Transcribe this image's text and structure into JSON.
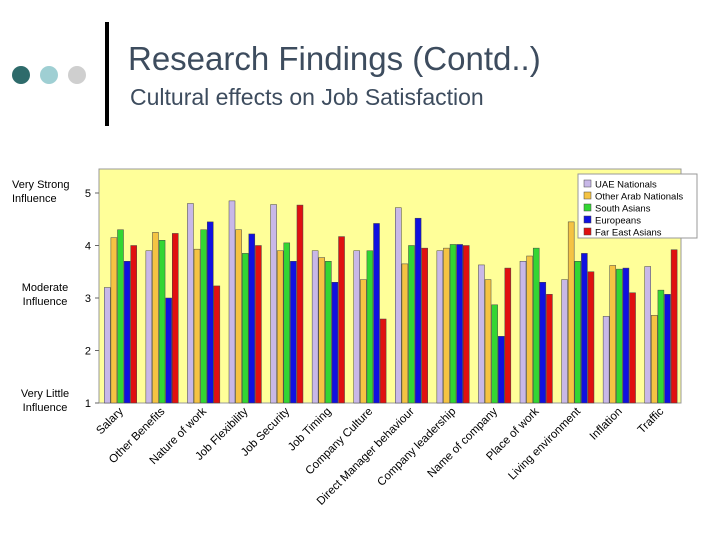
{
  "slide": {
    "title": "Research Findings (Contd..)",
    "subtitle": "Cultural effects on Job Satisfaction",
    "dot_colors": [
      "#2e6b6b",
      "#9fcfd3",
      "#cfcfcf"
    ]
  },
  "influence_labels": {
    "very_strong_line1": "Very Strong",
    "very_strong_line2": "Influence",
    "moderate_line1": "Moderate",
    "moderate_line2": "Influence",
    "very_little_line1": "Very Little",
    "very_little_line2": "Influence"
  },
  "chart_data": {
    "type": "bar",
    "title": "",
    "xlabel": "",
    "ylabel": "",
    "ylim": [
      1,
      5
    ],
    "yticks": [
      1,
      2,
      3,
      4,
      5
    ],
    "grid": false,
    "legend_position": "top-right",
    "plot_background": "#ffff99",
    "categories": [
      "Salary",
      "Other Benefits",
      "Nature of work",
      "Job Flexibility",
      "Job Security",
      "Job Timing",
      "Company Culture",
      "Direct Manager behaviour",
      "Company leadership",
      "Name of company",
      "Place of work",
      "Living environment",
      "Inflation",
      "Traffic"
    ],
    "series": [
      {
        "name": "UAE Nationals",
        "color": "#c8b8e8",
        "values": [
          3.2,
          3.9,
          4.8,
          4.85,
          4.78,
          3.9,
          3.9,
          4.72,
          3.9,
          3.63,
          3.7,
          3.35,
          2.65,
          3.6
        ]
      },
      {
        "name": "Other Arab Nationals",
        "color": "#f5c343",
        "values": [
          4.15,
          4.25,
          3.93,
          4.3,
          3.9,
          3.77,
          3.35,
          3.65,
          3.95,
          3.35,
          3.8,
          4.45,
          3.62,
          2.67
        ]
      },
      {
        "name": "South Asians",
        "color": "#33d633",
        "values": [
          4.3,
          4.1,
          4.3,
          3.85,
          4.05,
          3.7,
          3.9,
          4.0,
          4.02,
          2.87,
          3.95,
          3.7,
          3.55,
          3.15
        ]
      },
      {
        "name": "Europeans",
        "color": "#1010e0",
        "values": [
          3.7,
          3.0,
          4.45,
          4.22,
          3.7,
          3.3,
          4.42,
          4.52,
          4.02,
          2.27,
          3.3,
          3.85,
          3.57,
          3.07
        ]
      },
      {
        "name": "Far East Asians",
        "color": "#e01010",
        "values": [
          4.0,
          4.23,
          3.23,
          4.0,
          4.77,
          4.17,
          2.6,
          3.95,
          4.0,
          3.57,
          3.07,
          3.5,
          3.1,
          3.92
        ]
      }
    ]
  }
}
